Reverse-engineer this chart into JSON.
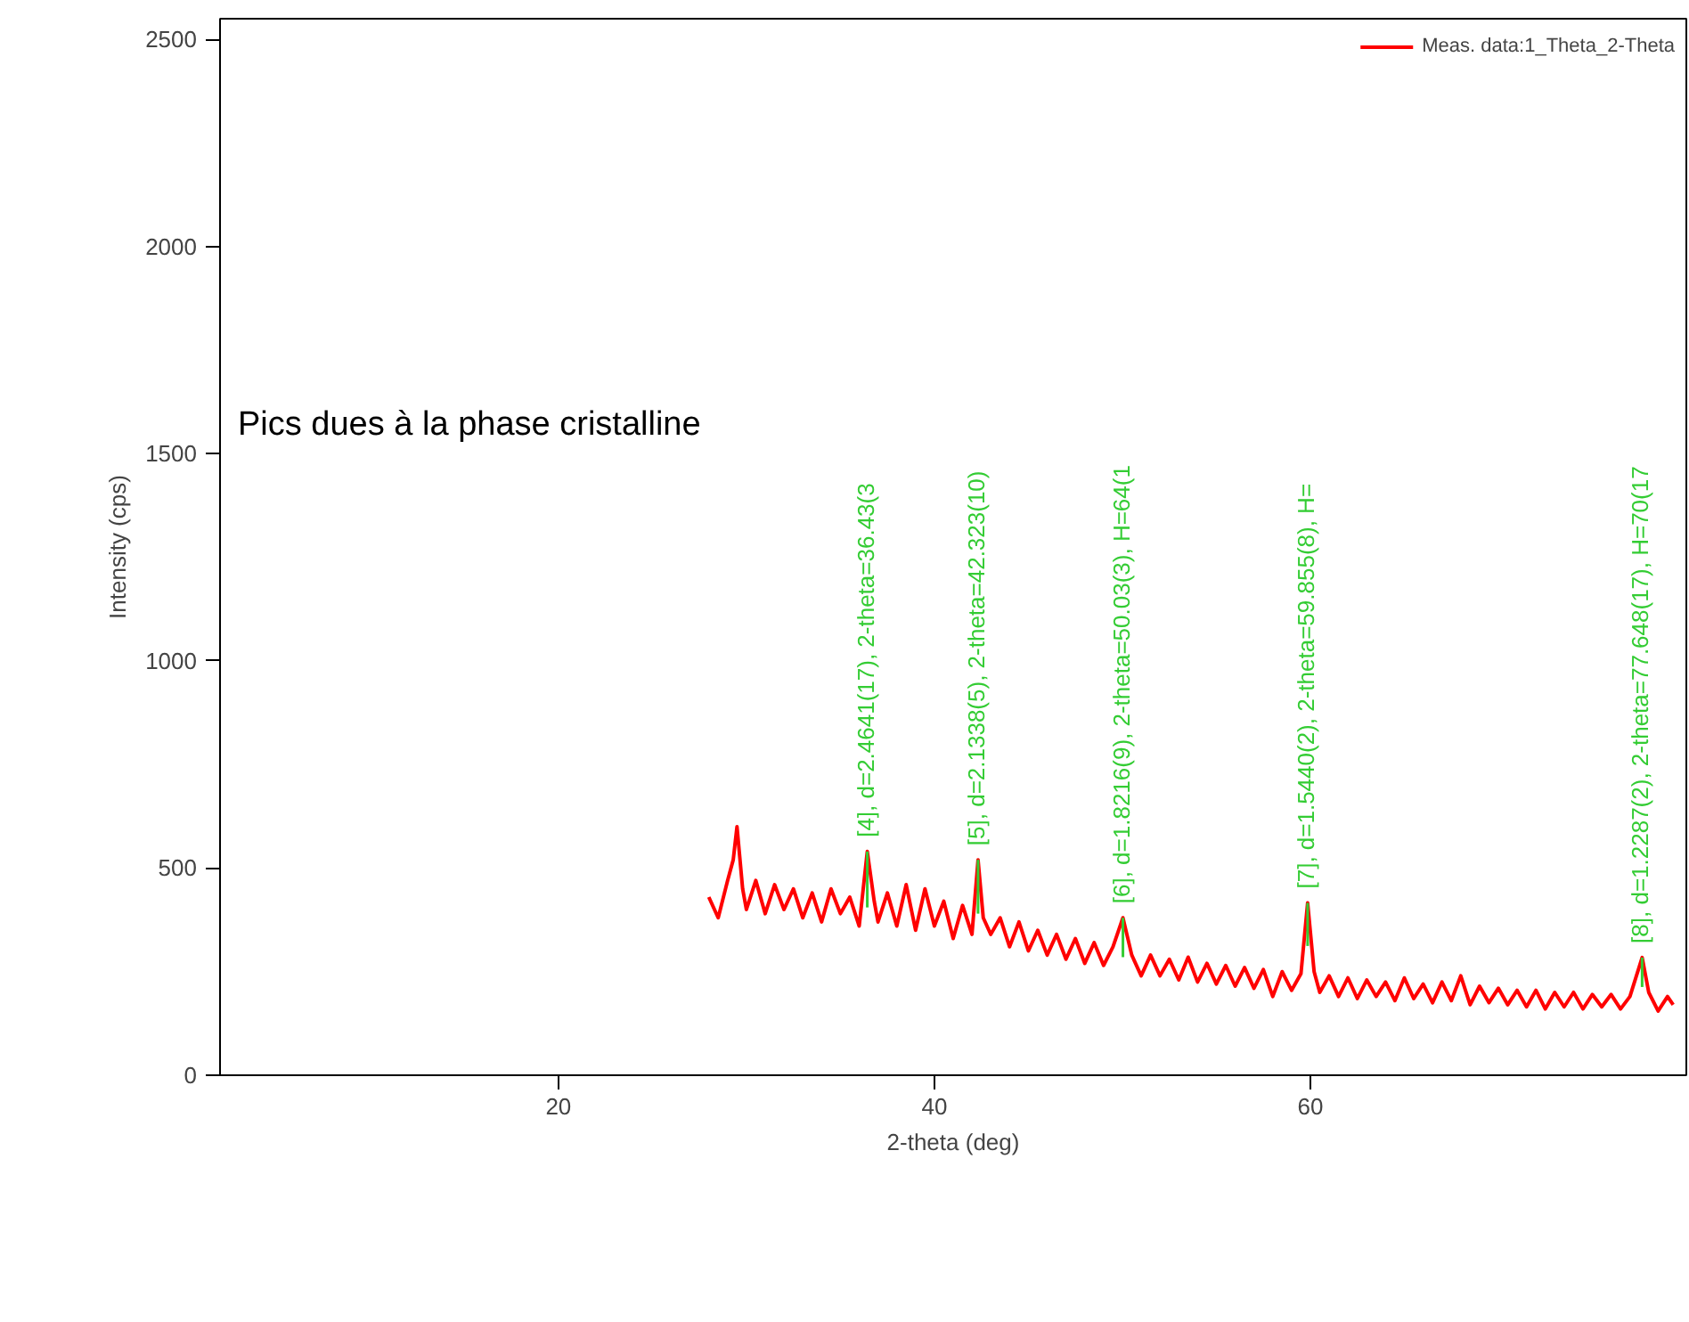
{
  "chart_data": {
    "type": "line",
    "xlabel": "2-theta (deg)",
    "ylabel": "Intensity (cps)",
    "xlim": [
      2,
      80
    ],
    "xticks": [
      20,
      40,
      60
    ],
    "ylim": [
      0,
      2550
    ],
    "yticks": [
      0,
      500,
      1000,
      1500,
      2000,
      2500
    ],
    "grid": false,
    "legend": "top right",
    "series": [
      {
        "name": "Meas. data:1_Theta_2-Theta",
        "color": "#ff0000",
        "x": [
          28.0,
          28.5,
          29.0,
          29.3,
          29.5,
          29.8,
          30.0,
          30.5,
          31.0,
          31.5,
          32.0,
          32.5,
          33.0,
          33.5,
          34.0,
          34.5,
          35.0,
          35.5,
          36.0,
          36.43,
          36.8,
          37.0,
          37.5,
          38.0,
          38.5,
          39.0,
          39.5,
          40.0,
          40.5,
          41.0,
          41.5,
          42.0,
          42.323,
          42.6,
          43.0,
          43.5,
          44.0,
          44.5,
          45.0,
          45.5,
          46.0,
          46.5,
          47.0,
          47.5,
          48.0,
          48.5,
          49.0,
          49.5,
          50.03,
          50.5,
          51.0,
          51.5,
          52.0,
          52.5,
          53.0,
          53.5,
          54.0,
          54.5,
          55.0,
          55.5,
          56.0,
          56.5,
          57.0,
          57.5,
          58.0,
          58.5,
          59.0,
          59.5,
          59.855,
          60.2,
          60.5,
          61.0,
          61.5,
          62.0,
          62.5,
          63.0,
          63.5,
          64.0,
          64.5,
          65.0,
          65.5,
          66.0,
          66.5,
          67.0,
          67.5,
          68.0,
          68.5,
          69.0,
          69.5,
          70.0,
          70.5,
          71.0,
          71.5,
          72.0,
          72.5,
          73.0,
          73.5,
          74.0,
          74.5,
          75.0,
          75.5,
          76.0,
          76.5,
          77.0,
          77.65,
          78.0,
          78.5,
          79.0,
          79.3
        ],
        "values": [
          430,
          380,
          470,
          520,
          600,
          450,
          400,
          470,
          390,
          460,
          400,
          450,
          380,
          440,
          370,
          450,
          390,
          430,
          360,
          540,
          420,
          370,
          440,
          360,
          460,
          350,
          450,
          360,
          420,
          330,
          410,
          340,
          520,
          380,
          340,
          380,
          310,
          370,
          300,
          350,
          290,
          340,
          280,
          330,
          270,
          320,
          265,
          310,
          380,
          290,
          240,
          290,
          240,
          280,
          230,
          285,
          225,
          270,
          220,
          265,
          215,
          260,
          210,
          255,
          190,
          250,
          205,
          245,
          416,
          250,
          200,
          240,
          190,
          235,
          185,
          230,
          190,
          225,
          180,
          235,
          185,
          220,
          175,
          225,
          180,
          240,
          170,
          215,
          175,
          210,
          170,
          205,
          165,
          205,
          160,
          200,
          165,
          200,
          160,
          195,
          165,
          195,
          160,
          190,
          284,
          200,
          155,
          190,
          170
        ]
      }
    ],
    "annotations": [
      "Pics dues à la phase cristalline",
      {
        "text": "[4], d=2.4641(17), 2-theta=36.43(3",
        "x": 36.43,
        "y": 540
      },
      {
        "text": "[5], d=2.1338(5), 2-theta=42.323(10)",
        "x": 42.323,
        "y": 520
      },
      {
        "text": "[6], d=1.8216(9), 2-theta=50.03(3), H=64(1",
        "x": 50.03,
        "y": 380
      },
      {
        "text": "[7], d=1.5440(2), 2-theta=59.855(8), H=",
        "x": 59.855,
        "y": 416
      },
      {
        "text": "[8], d=1.2287(2), 2-theta=77.648(17), H=70(17",
        "x": 77.648,
        "y": 284
      }
    ]
  }
}
